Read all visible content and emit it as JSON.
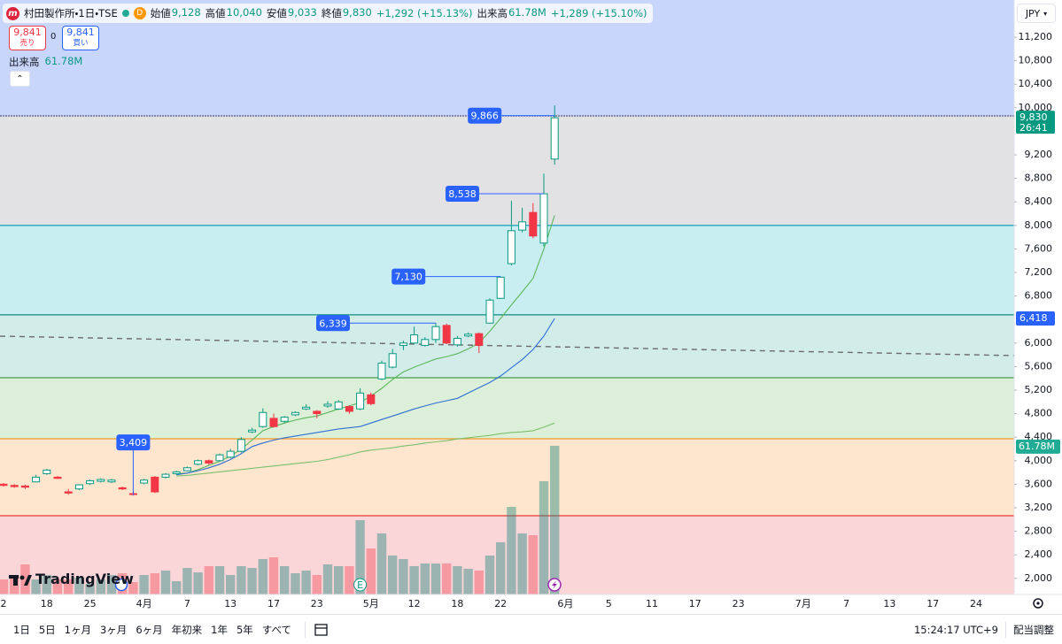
{
  "header": {
    "logo": "m",
    "symbol": "村田製作所・1日・TSE",
    "flag": "D",
    "stats": [
      {
        "label": "始値",
        "value": "9,128"
      },
      {
        "label": "高値",
        "value": "10,040"
      },
      {
        "label": "安値",
        "value": "9,033"
      },
      {
        "label": "終値",
        "value": "9,830"
      }
    ],
    "change": "+1,292 (+15.13%)",
    "volume_label": "出来高",
    "volume": "61.78M",
    "volume_change": "+1,289 (+15.10%)"
  },
  "trade": {
    "sell_price": "9,841",
    "sell": "売り",
    "spread": "0",
    "buy_price": "9,841",
    "buy": "買い"
  },
  "volume_legend": {
    "label": "出来高",
    "value": "61.78M"
  },
  "currency": "JPY",
  "brand": "TradingView",
  "toolbar": {
    "ranges": [
      "1日",
      "5日",
      "1ヶ月",
      "3ヶ月",
      "6ヶ月",
      "年初来",
      "1年",
      "5年",
      "すべて"
    ],
    "time": "15:24:17 UTC+9",
    "adjust": "配当調整"
  },
  "chart_data": {
    "type": "candlestick",
    "categories": [
      "2",
      null,
      null,
      null,
      "18",
      null,
      null,
      null,
      "25",
      null,
      null,
      null,
      null,
      "4月",
      null,
      null,
      null,
      "7",
      null,
      null,
      null,
      "13",
      null,
      null,
      null,
      "17",
      null,
      null,
      null,
      "23",
      null,
      null,
      null,
      null,
      "5月",
      null,
      null,
      null,
      "12",
      null,
      null,
      null,
      "18",
      null,
      null,
      null,
      "22",
      null,
      null,
      null,
      null,
      null,
      "6月",
      null,
      null,
      null,
      "5",
      null,
      null,
      null,
      "11",
      null,
      null,
      null,
      "17",
      null,
      null,
      null,
      "23",
      null,
      null,
      null,
      null,
      null,
      "7月",
      null,
      null,
      null,
      "7",
      null,
      null,
      null,
      "13",
      null,
      null,
      null,
      "17",
      null,
      null,
      null,
      "24",
      null,
      null,
      null
    ],
    "open": [
      3600,
      3580,
      3570,
      3640,
      3780,
      3720,
      3470,
      3520,
      3610,
      3650,
      3640,
      3540,
      3440,
      3620,
      3720,
      3720,
      3780,
      3830,
      3940,
      4000,
      4000,
      4060,
      4160,
      4490,
      4580,
      4720,
      4670,
      4780,
      4880,
      4840,
      4930,
      4880,
      4920,
      4880,
      5120,
      5390,
      5590,
      5960,
      6000,
      5960,
      6060,
      6300,
      5970,
      6120,
      6160,
      6340,
      6760,
      7350,
      7920,
      8220,
      7700,
      9128,
      null,
      null,
      null,
      null,
      null,
      null,
      null,
      null,
      null,
      null,
      null,
      null,
      null,
      null,
      null,
      null,
      null,
      null,
      null,
      null,
      null,
      null,
      null,
      null,
      null,
      null,
      null,
      null,
      null,
      null,
      null,
      null,
      null,
      null,
      null,
      null,
      null,
      null,
      null,
      null,
      null,
      null
    ],
    "high": [
      3620,
      3600,
      3590,
      3760,
      3860,
      3740,
      3520,
      3600,
      3680,
      3700,
      3690,
      3560,
      3470,
      3690,
      3740,
      3790,
      3830,
      3900,
      4020,
      4020,
      4120,
      4200,
      4400,
      4560,
      4890,
      4800,
      4760,
      4840,
      4960,
      4860,
      5010,
      5030,
      4940,
      5230,
      5160,
      5700,
      5900,
      6040,
      6280,
      6100,
      6339,
      6330,
      6120,
      6180,
      6180,
      6760,
      7130,
      8420,
      8300,
      8380,
      8880,
      10040,
      null,
      null,
      null,
      null,
      null,
      null,
      null,
      null,
      null,
      null,
      null,
      null,
      null,
      null,
      null,
      null,
      null,
      null,
      null,
      null,
      null,
      null,
      null,
      null,
      null,
      null,
      null,
      null,
      null,
      null,
      null,
      null,
      null,
      null,
      null,
      null,
      null,
      null,
      null,
      null,
      null,
      null
    ],
    "low": [
      3560,
      3540,
      3520,
      3630,
      3760,
      3690,
      3420,
      3500,
      3590,
      3630,
      3620,
      3500,
      3409,
      3600,
      3450,
      3700,
      3760,
      3820,
      3920,
      3930,
      3980,
      4040,
      4140,
      4470,
      4560,
      4560,
      4640,
      4760,
      4860,
      4720,
      4900,
      4860,
      4800,
      4860,
      4940,
      5370,
      5570,
      5880,
      5980,
      5940,
      6000,
      5980,
      5940,
      6100,
      5830,
      6330,
      6750,
      7320,
      7880,
      7780,
      7640,
      9033,
      null,
      null,
      null,
      null,
      null,
      null,
      null,
      null,
      null,
      null,
      null,
      null,
      null,
      null,
      null,
      null,
      null,
      null,
      null,
      null,
      null,
      null,
      null,
      null,
      null,
      null,
      null,
      null,
      null,
      null,
      null,
      null,
      null,
      null,
      null,
      null,
      null,
      null,
      null,
      null,
      null,
      null
    ],
    "close": [
      3580,
      3560,
      3550,
      3720,
      3840,
      3700,
      3450,
      3590,
      3660,
      3680,
      3670,
      3520,
      3430,
      3670,
      3470,
      3770,
      3810,
      3880,
      4000,
      3960,
      4100,
      4160,
      4360,
      4520,
      4820,
      4580,
      4740,
      4820,
      4910,
      4800,
      4960,
      5000,
      4840,
      5150,
      4970,
      5660,
      5820,
      6000,
      6140,
      6060,
      6280,
      6000,
      6080,
      6150,
      5960,
      6730,
      7120,
      7910,
      8060,
      7820,
      8538,
      9830,
      null,
      null,
      null,
      null,
      null,
      null,
      null,
      null,
      null,
      null,
      null,
      null,
      null,
      null,
      null,
      null,
      null,
      null,
      null,
      null,
      null,
      null,
      null,
      null,
      null,
      null,
      null,
      null,
      null,
      null,
      null,
      null,
      null,
      null,
      null,
      null,
      null,
      null,
      null,
      null,
      null,
      null
    ],
    "volume": [
      6.25,
      8.09,
      12.5,
      6.25,
      8.09,
      6.25,
      6.25,
      6.99,
      4.41,
      6.25,
      8.09,
      8.83,
      5.15,
      8.09,
      8.83,
      9.93,
      5.52,
      11.03,
      9.19,
      11.77,
      11.77,
      8.09,
      11.77,
      11.03,
      14.71,
      15.44,
      11.77,
      8.83,
      9.93,
      8.09,
      12.5,
      11.77,
      11.77,
      30.89,
      19.12,
      25.37,
      16.18,
      14.71,
      11.77,
      12.87,
      12.87,
      12.87,
      11.77,
      10.66,
      9.93,
      16.18,
      21.69,
      36.4,
      25.37,
      24.64,
      47.07,
      61.78,
      null,
      null,
      null,
      null,
      null,
      null,
      null,
      null,
      null,
      null,
      null,
      null,
      null,
      null,
      null,
      null,
      null,
      null,
      null,
      null,
      null,
      null,
      null,
      null,
      null,
      null,
      null,
      null,
      null,
      null,
      null,
      null,
      null,
      null,
      null,
      null,
      null,
      null,
      null,
      null,
      null,
      null
    ],
    "ma": [
      {
        "color": "#5cb85c",
        "values": [
          null,
          null,
          null,
          null,
          null,
          null,
          null,
          null,
          null,
          null,
          null,
          null,
          null,
          null,
          null,
          null,
          3780,
          3790,
          3850,
          3920,
          3990,
          4080,
          4200,
          4350,
          4510,
          4580,
          4640,
          4690,
          4730,
          4760,
          4820,
          4880,
          4930,
          4990,
          5100,
          5230,
          5380,
          5510,
          5590,
          5660,
          5730,
          5770,
          5820,
          5900,
          6000,
          6200,
          6420,
          6650,
          6870,
          7100,
          7600,
          8170,
          null,
          null,
          null,
          null,
          null,
          null,
          null,
          null,
          null,
          null,
          null,
          null,
          null,
          null,
          null,
          null,
          null,
          null,
          null,
          null,
          null,
          null,
          null,
          null,
          null,
          null,
          null,
          null,
          null,
          null,
          null,
          null,
          null,
          null,
          null,
          null,
          null,
          null,
          null,
          null,
          null,
          null
        ]
      },
      {
        "color": "#2f6fd6",
        "values": [
          null,
          null,
          null,
          null,
          null,
          null,
          null,
          null,
          null,
          null,
          null,
          null,
          null,
          null,
          null,
          null,
          3760,
          3790,
          3830,
          3880,
          3940,
          4020,
          4120,
          4240,
          4300,
          4350,
          4390,
          4420,
          4450,
          4480,
          4510,
          4540,
          4560,
          4580,
          4640,
          4700,
          4760,
          4820,
          4880,
          4930,
          4980,
          5020,
          5060,
          5150,
          5240,
          5330,
          5440,
          5580,
          5720,
          5890,
          6120,
          6418,
          null,
          null,
          null,
          null,
          null,
          null,
          null,
          null,
          null,
          null,
          null,
          null,
          null,
          null,
          null,
          null,
          null,
          null,
          null,
          null,
          null,
          null,
          null,
          null,
          null,
          null,
          null,
          null,
          null,
          null,
          null,
          null,
          null,
          null,
          null,
          null,
          null,
          null,
          null,
          null,
          null,
          null
        ]
      },
      {
        "color": "#7cbf6e",
        "values": [
          null,
          null,
          null,
          null,
          null,
          null,
          null,
          null,
          null,
          null,
          null,
          null,
          null,
          null,
          null,
          null,
          3740,
          3750,
          3770,
          3790,
          3810,
          3830,
          3850,
          3870,
          3890,
          3910,
          3930,
          3950,
          3970,
          3990,
          4020,
          4060,
          4100,
          4150,
          4180,
          4200,
          4220,
          4250,
          4270,
          4300,
          4320,
          4340,
          4370,
          4390,
          4410,
          4430,
          4460,
          4480,
          4490,
          4510,
          4570,
          4640,
          null,
          null,
          null,
          null,
          null,
          null,
          null,
          null,
          null,
          null,
          null,
          null,
          null,
          null,
          null,
          null,
          null,
          null,
          null,
          null,
          null,
          null,
          null,
          null,
          null,
          null,
          null,
          null,
          null,
          null,
          null,
          null,
          null,
          null,
          null,
          null,
          null,
          null,
          null,
          null,
          null,
          null
        ]
      }
    ],
    "up_color": "#089981",
    "down_color": "#f23645",
    "volume_up_color": "rgba(38,140,130,0.45)",
    "volume_down_color": "rgba(242,54,69,0.38)",
    "ylim": [
      1726,
      11832
    ],
    "vlim": [
      0,
      247
    ],
    "yticks": [
      {
        "value": 11200,
        "label": "11,200"
      },
      {
        "value": 10800,
        "label": "10,800"
      },
      {
        "value": 10400,
        "label": "10,400"
      },
      {
        "value": 10000,
        "label": "10,000"
      },
      {
        "value": 9200,
        "label": "9,200"
      },
      {
        "value": 8800,
        "label": "8,800"
      },
      {
        "value": 8400,
        "label": "8,400"
      },
      {
        "value": 8000,
        "label": "8,000"
      },
      {
        "value": 7600,
        "label": "7,600"
      },
      {
        "value": 7200,
        "label": "7,200"
      },
      {
        "value": 6800,
        "label": "6,800"
      },
      {
        "value": 6000,
        "label": "6,000"
      },
      {
        "value": 5600,
        "label": "5,600"
      },
      {
        "value": 5200,
        "label": "5,200"
      },
      {
        "value": 4800,
        "label": "4,800"
      },
      {
        "value": 4400,
        "label": "4,400"
      },
      {
        "value": 4000,
        "label": "4,000"
      },
      {
        "value": 3600,
        "label": "3,600"
      },
      {
        "value": 3200,
        "label": "3,200"
      },
      {
        "value": 2800,
        "label": "2,800"
      },
      {
        "value": 2400,
        "label": "2,400"
      },
      {
        "value": 2000,
        "label": "2,000"
      }
    ],
    "top_fill": "#c9d6fb",
    "levels": [
      {
        "value": 9862,
        "line": "#4a5a7a",
        "fill": "#e2e2e4"
      },
      {
        "value": 8000,
        "line": "#26a6c4",
        "fill": "#c9eef2"
      },
      {
        "value": 6480,
        "line": "#0f8a7e",
        "fill": "#d2ecea"
      },
      {
        "value": 5410,
        "line": "#43a047",
        "fill": "#dcefd9"
      },
      {
        "value": 4373,
        "line": "#ef9a2f",
        "fill": "#fde6cd"
      },
      {
        "value": 3065,
        "line": "#e53935",
        "fill": "#fbd6d9"
      }
    ],
    "trendline": [
      6117,
      5787
    ],
    "annotations": [
      {
        "index": 51,
        "value": 9866,
        "label": "9,866"
      },
      {
        "index": 50,
        "value": 8538,
        "label": "8,538"
      },
      {
        "index": 46,
        "value": 7130,
        "label": "7,130"
      },
      {
        "index": 40,
        "value": 6339,
        "label": "6,339"
      },
      {
        "index": 12,
        "value": 3409,
        "label": "3,409"
      }
    ],
    "last_price": {
      "value": 9830,
      "label": "9,830"
    },
    "countdown": "26:41",
    "ma_marker": {
      "value": 6418,
      "label": "6,418"
    },
    "volume_marker": {
      "value": 61.78,
      "label": "61.78M"
    },
    "events": [
      {
        "index": 33,
        "label": "E"
      }
    ]
  }
}
